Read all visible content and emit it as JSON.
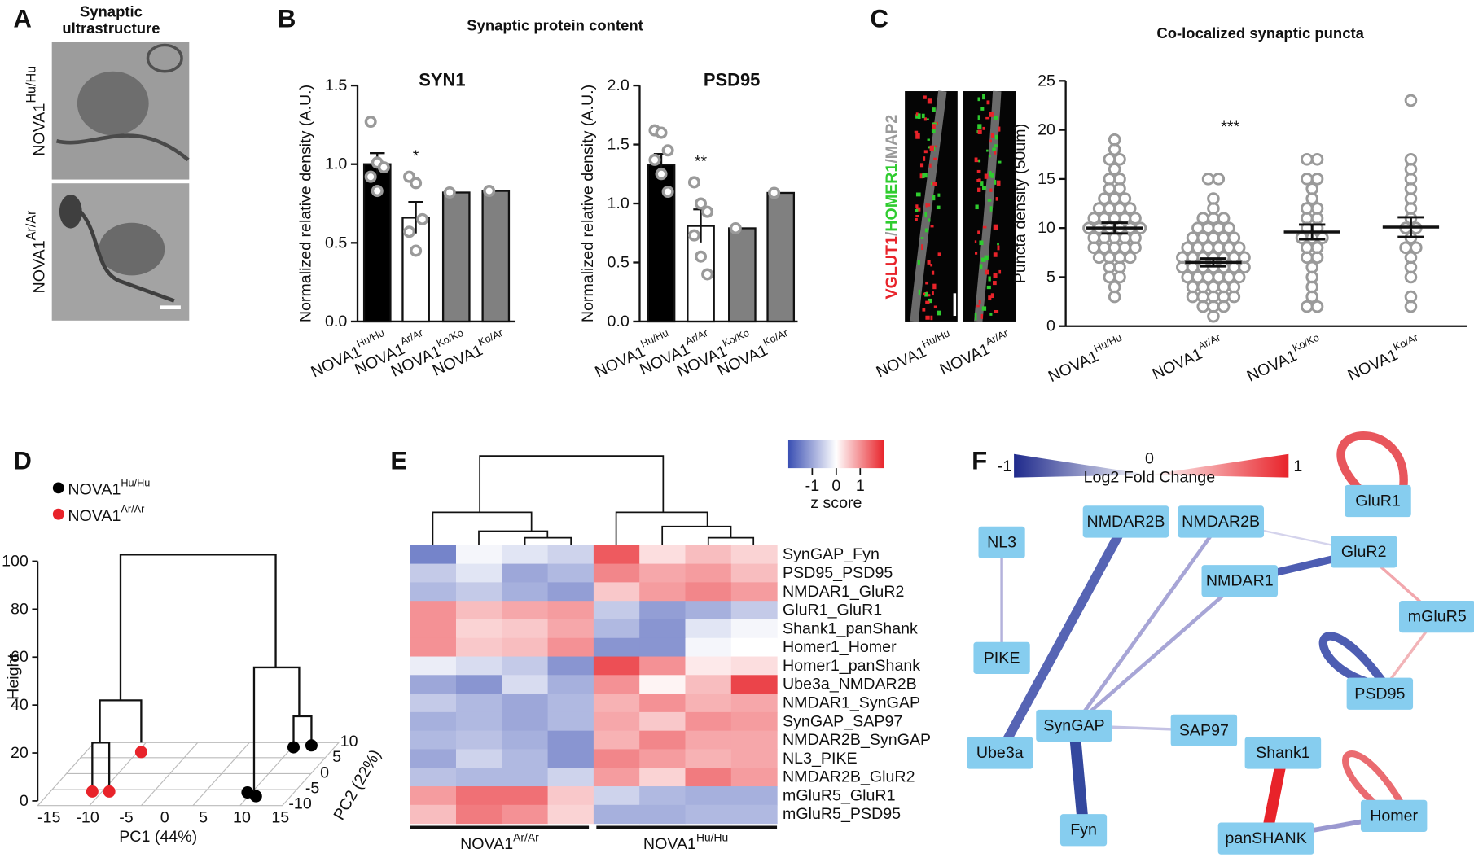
{
  "panel_a": {
    "letter": "A",
    "title": [
      "Synaptic",
      "ultrastructure"
    ],
    "prefix": "NOVA1",
    "genotypes": [
      "Hu/Hu",
      "Ar/Ar"
    ]
  },
  "panel_b": {
    "letter": "B",
    "title": "Synaptic protein content"
  },
  "panel_c": {
    "letter": "C",
    "title": "Co-localized synaptic puncta",
    "stain": [
      "VGLUT1",
      "/",
      "HOMER1",
      "/",
      "MAP2"
    ],
    "stain_colors": [
      "#e8232a",
      "#9a9a9a",
      "#2fcc2f",
      "#9a9a9a",
      "#9a9a9a"
    ],
    "prefix": "NOVA1",
    "genotypes": [
      "Hu/Hu",
      "Ar/Ar"
    ]
  },
  "panel_d": {
    "letter": "D",
    "prefix": "NOVA1",
    "legend": [
      "Hu/Hu",
      "Ar/Ar"
    ],
    "legend_colors": [
      "#000000",
      "#e8232a"
    ],
    "ylabel": "Height",
    "yticks": [
      0,
      20,
      40,
      60,
      80,
      100
    ],
    "xlabel": "PC1 (44%)",
    "xticks": [
      -15,
      -10,
      -5,
      0,
      5,
      10,
      15
    ],
    "zlabel": "PC2 (22%)",
    "zticks": [
      -10,
      -5,
      0,
      5,
      10
    ]
  },
  "panel_e": {
    "letter": "E"
  },
  "panel_f": {
    "letter": "F",
    "legend_title": "Log2 Fold Change",
    "legend_ticks": [
      -1,
      0,
      1
    ],
    "nodes": [
      "NL3",
      "PIKE",
      "NMDAR2B",
      "NMDAR2B",
      "GluR1",
      "GluR2",
      "NMDAR1",
      "mGluR5",
      "PSD95",
      "SynGAP",
      "SAP97",
      "Ube3a",
      "Fyn",
      "Shank1",
      "panSHANK",
      "Homer"
    ]
  },
  "chart_data": [
    {
      "type": "bar",
      "title": "SYN1",
      "ylabel": "Normalized relative density (A.U.)",
      "category_prefix": "NOVA1",
      "categories": [
        "Hu/Hu",
        "Ar/Ar",
        "Ko/Ko",
        "Ko/Ar"
      ],
      "values": [
        1.0,
        0.66,
        0.82,
        0.83
      ],
      "errors": [
        0.07,
        0.1,
        null,
        null
      ],
      "colors": [
        "#000000",
        "#ffffff",
        "#808080",
        "#808080"
      ],
      "points": [
        [
          1.27,
          1.01,
          0.98,
          0.92,
          0.83
        ],
        [
          0.92,
          0.88,
          0.65,
          0.57,
          0.45
        ],
        [
          0.82
        ],
        [
          0.83
        ]
      ],
      "annotations": [
        null,
        "*",
        null,
        null
      ],
      "ylim": [
        0,
        1.5
      ],
      "yticks": [
        {
          "value": 0,
          "label": "0.0"
        },
        0.5,
        {
          "value": 1,
          "label": "1.0"
        },
        1.5
      ]
    },
    {
      "type": "bar",
      "title": "PSD95",
      "ylabel": "Normalized relative density (A.U.)",
      "category_prefix": "NOVA1",
      "categories": [
        "Hu/Hu",
        "Ar/Ar",
        "Ko/Ko",
        "Ko/Ar"
      ],
      "values": [
        1.33,
        0.81,
        0.79,
        1.09
      ],
      "errors": [
        0.09,
        0.14,
        null,
        null
      ],
      "colors": [
        "#000000",
        "#ffffff",
        "#808080",
        "#808080"
      ],
      "points": [
        [
          1.62,
          1.6,
          1.45,
          1.37,
          1.25,
          1.1
        ],
        [
          1.18,
          1.0,
          0.93,
          0.73,
          0.55,
          0.4
        ],
        [
          0.79
        ],
        [
          1.09
        ]
      ],
      "annotations": [
        null,
        "**",
        null,
        null
      ],
      "ylim": [
        0,
        2
      ],
      "yticks": [
        {
          "value": 0,
          "label": "0.0"
        },
        0.5,
        {
          "value": 1,
          "label": "1.0"
        },
        1.5,
        {
          "value": 2,
          "label": "2.0"
        }
      ]
    },
    {
      "type": "dot",
      "ylabel": "Puncta density (50um)",
      "category_prefix": "NOVA1",
      "categories": [
        "Hu/Hu",
        "Ar/Ar",
        "Ko/Ko",
        "Ko/Ar"
      ],
      "values": [
        10.0,
        6.5,
        9.6,
        10.1
      ],
      "errors": [
        0.55,
        0.4,
        0.75,
        1.0
      ],
      "points": [
        [
          19,
          18,
          17,
          17,
          16,
          15,
          15,
          14,
          14,
          13,
          13,
          13,
          12,
          12,
          12,
          12,
          11,
          11,
          11,
          11,
          11,
          10,
          10,
          10,
          10,
          10,
          10,
          9,
          9,
          9,
          9,
          9,
          8,
          8,
          8,
          8,
          8,
          7,
          7,
          7,
          7,
          6,
          6,
          5,
          5,
          4,
          3
        ],
        [
          15,
          15,
          13,
          12,
          11,
          11,
          11,
          10,
          10,
          10,
          10,
          9,
          9,
          9,
          9,
          9,
          8,
          8,
          8,
          8,
          8,
          8,
          7,
          7,
          7,
          7,
          7,
          7,
          7,
          6,
          6,
          6,
          6,
          6,
          6,
          6,
          5,
          5,
          5,
          5,
          5,
          5,
          4,
          4,
          4,
          4,
          4,
          3,
          3,
          3,
          3,
          3,
          2,
          2,
          2,
          1
        ],
        [
          17,
          17,
          15,
          15,
          14,
          13,
          12,
          12,
          11,
          11,
          10,
          10,
          9,
          9,
          9,
          8,
          8,
          7,
          7,
          6,
          5,
          4,
          3,
          2,
          2
        ],
        [
          23,
          17,
          16,
          15,
          14,
          13,
          12,
          11,
          10,
          10,
          9,
          8,
          8,
          7,
          6,
          5,
          3,
          2
        ]
      ],
      "annotations": [
        null,
        "***",
        null,
        null
      ],
      "ylim": [
        0,
        25
      ],
      "yticks": [
        0,
        5,
        10,
        15,
        20,
        25
      ]
    },
    {
      "type": "heatmap",
      "rows": [
        "SynGAP_Fyn",
        "PSD95_PSD95",
        "NMDAR1_GluR2",
        "GluR1_GluR1",
        "Shank1_panShank",
        "Homer1_Homer",
        "Homer1_panShank",
        "Ube3a_NMDAR2B",
        "NMDAR1_SynGAP",
        "SynGAP_SAP97",
        "NMDAR2B_SynGAP",
        "NL3_PIKE",
        "NMDAR2B_GluR2",
        "mGluR5_GluR1",
        "mGluR5_PSD95"
      ],
      "values": [
        [
          -1.4,
          -0.1,
          -0.3,
          -0.5,
          1.5,
          0.3,
          0.6,
          0.4
        ],
        [
          -0.6,
          -0.3,
          -1.0,
          -0.8,
          1.1,
          0.8,
          0.9,
          0.6
        ],
        [
          -0.8,
          -0.6,
          -0.9,
          -1.1,
          0.5,
          0.9,
          1.1,
          0.9
        ],
        [
          1.0,
          0.6,
          0.8,
          0.9,
          -0.6,
          -1.1,
          -0.9,
          -0.6
        ],
        [
          1.0,
          0.4,
          0.5,
          0.8,
          -0.8,
          -1.2,
          -0.3,
          -0.1
        ],
        [
          1.0,
          0.5,
          0.6,
          1.0,
          -1.2,
          -1.2,
          -0.1,
          0.0
        ],
        [
          -0.2,
          -0.4,
          -0.6,
          -1.2,
          1.6,
          1.0,
          0.2,
          0.3
        ],
        [
          -1.0,
          -1.2,
          -0.4,
          -0.9,
          1.0,
          0.1,
          0.6,
          1.7
        ],
        [
          -0.6,
          -0.8,
          -1.0,
          -0.8,
          0.7,
          1.0,
          0.7,
          0.8
        ],
        [
          -0.9,
          -0.8,
          -1.0,
          -0.8,
          0.8,
          0.5,
          1.0,
          0.9
        ],
        [
          -0.8,
          -0.7,
          -0.9,
          -1.2,
          0.7,
          1.1,
          0.8,
          0.8
        ],
        [
          -1.0,
          -0.5,
          -0.8,
          -1.2,
          1.1,
          0.9,
          0.7,
          0.8
        ],
        [
          -0.7,
          -0.8,
          -0.8,
          -0.5,
          0.9,
          0.4,
          1.2,
          0.9
        ],
        [
          0.9,
          1.3,
          1.3,
          0.5,
          -0.5,
          -0.8,
          -0.9,
          -0.9
        ],
        [
          0.6,
          1.2,
          1.0,
          0.4,
          -0.9,
          -0.9,
          -0.8,
          -0.8
        ]
      ],
      "zlim": [
        -2,
        2
      ],
      "colors": [
        "#3a4fb3",
        "#ffffff",
        "#e8232a"
      ],
      "colorbar_label": "z score",
      "colorbar_ticks": [
        -1,
        0,
        1
      ],
      "column_prefix": "NOVA1",
      "column_groups": [
        "Ar/Ar",
        "Hu/Hu"
      ]
    }
  ]
}
